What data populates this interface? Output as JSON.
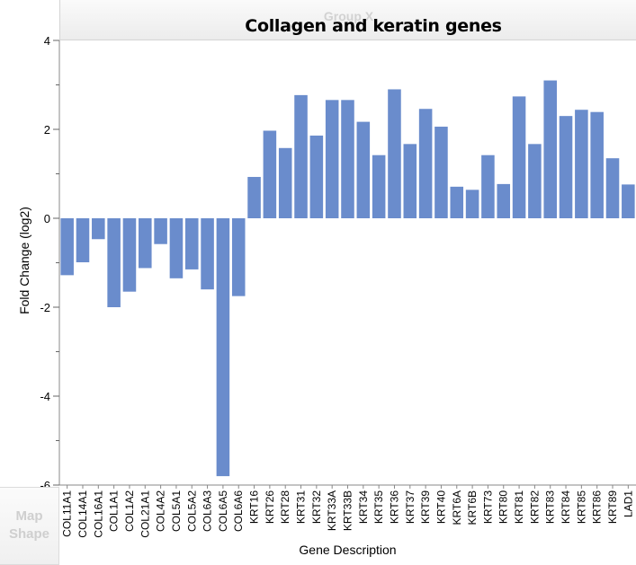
{
  "header": {
    "group_x_label": "Group X"
  },
  "map_shape": {
    "line1": "Map",
    "line2": "Shape"
  },
  "chart_data": {
    "type": "bar",
    "title": "Collagen and keratin genes",
    "xlabel": "Gene Description",
    "ylabel": "Fold Change (log2)",
    "ylim": [
      -6,
      4
    ],
    "yticks": [
      -6,
      -4,
      -2,
      0,
      2,
      4
    ],
    "bar_color": "#6a8ccc",
    "categories": [
      "COL11A1",
      "COL14A1",
      "COL16A1",
      "COL1A1",
      "COL1A2",
      "COL21A1",
      "COL4A2",
      "COL5A1",
      "COL5A2",
      "COL6A3",
      "COL6A5",
      "COL6A6",
      "KRT16",
      "KRT26",
      "KRT28",
      "KRT31",
      "KRT32",
      "KRT33A",
      "KRT33B",
      "KRT34",
      "KRT35",
      "KRT36",
      "KRT37",
      "KRT39",
      "KRT40",
      "KRT6A",
      "KRT6B",
      "KRT73",
      "KRT80",
      "KRT81",
      "KRT82",
      "KRT83",
      "KRT84",
      "KRT85",
      "KRT86",
      "KRT89",
      "LAD1"
    ],
    "values": [
      -1.28,
      -0.99,
      -0.47,
      -2.0,
      -1.65,
      -1.12,
      -0.58,
      -1.35,
      -1.15,
      -1.6,
      -5.8,
      -1.75,
      0.93,
      1.97,
      1.58,
      2.77,
      1.86,
      2.66,
      2.66,
      2.17,
      1.42,
      2.9,
      1.67,
      2.46,
      2.06,
      0.71,
      0.64,
      1.42,
      0.77,
      2.74,
      1.67,
      3.1,
      2.3,
      2.44,
      2.39,
      1.35,
      0.76
    ]
  }
}
